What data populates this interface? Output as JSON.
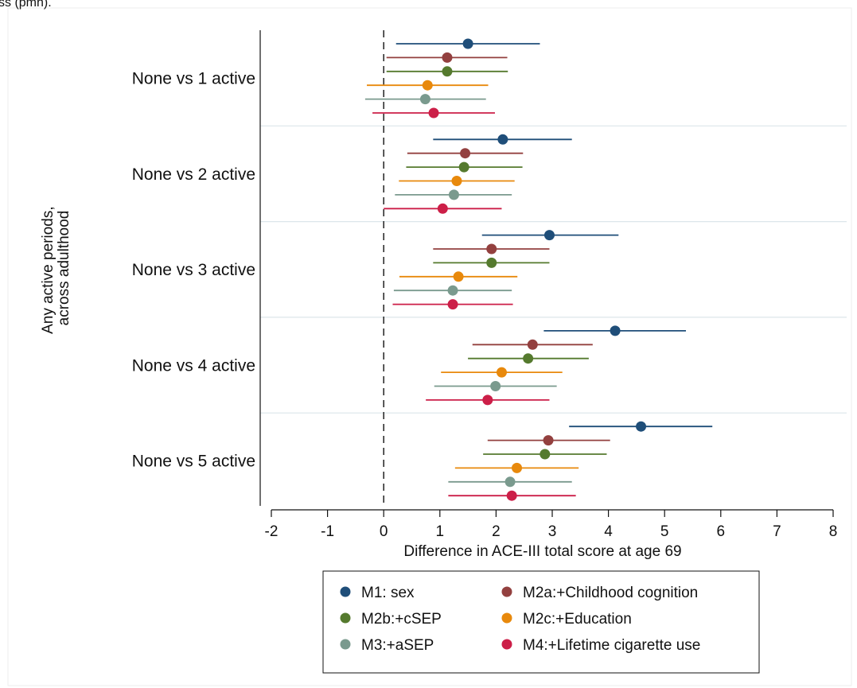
{
  "header": {
    "clipped_text": "ss (pmh)."
  },
  "chart_data": {
    "type": "forest",
    "title": "",
    "xlabel": "Difference in ACE-III total score at age 69",
    "ylabel_lines": [
      "Any active periods,",
      "across adulthood"
    ],
    "xlim": [
      -2,
      8
    ],
    "xticks": [
      -2,
      -1,
      0,
      1,
      2,
      3,
      4,
      5,
      6,
      7,
      8
    ],
    "reference_line": 0,
    "categories": [
      "None vs 1 active",
      "None vs 2 active",
      "None vs 3 active",
      "None vs 4 active",
      "None vs 5 active"
    ],
    "legend_position": "bottom",
    "series": [
      {
        "name": "M1: sex",
        "color": "#1f4e79",
        "estimate": [
          1.5,
          2.12,
          2.95,
          4.12,
          4.58
        ],
        "lower": [
          0.22,
          0.88,
          1.75,
          2.85,
          3.3
        ],
        "upper": [
          2.78,
          3.35,
          4.18,
          5.38,
          5.85
        ]
      },
      {
        "name": "M2a:+Childhood cognition",
        "color": "#93403f",
        "estimate": [
          1.13,
          1.45,
          1.92,
          2.65,
          2.93
        ],
        "lower": [
          0.05,
          0.42,
          0.88,
          1.58,
          1.85
        ],
        "upper": [
          2.2,
          2.48,
          2.95,
          3.72,
          4.03
        ]
      },
      {
        "name": "M2b:+cSEP",
        "color": "#557a2e",
        "estimate": [
          1.13,
          1.43,
          1.92,
          2.57,
          2.87
        ],
        "lower": [
          0.05,
          0.4,
          0.88,
          1.5,
          1.77
        ],
        "upper": [
          2.21,
          2.47,
          2.95,
          3.65,
          3.97
        ]
      },
      {
        "name": "M2c:+Education",
        "color": "#e8890c",
        "estimate": [
          0.78,
          1.3,
          1.33,
          2.1,
          2.37
        ],
        "lower": [
          -0.3,
          0.27,
          0.28,
          1.02,
          1.27
        ],
        "upper": [
          1.86,
          2.33,
          2.38,
          3.18,
          3.47
        ]
      },
      {
        "name": "M3:+aSEP",
        "color": "#7a9a8e",
        "estimate": [
          0.74,
          1.25,
          1.23,
          1.99,
          2.25
        ],
        "lower": [
          -0.33,
          0.2,
          0.18,
          0.9,
          1.15
        ],
        "upper": [
          1.82,
          2.28,
          2.28,
          3.08,
          3.35
        ]
      },
      {
        "name": "M4:+Lifetime cigarette use",
        "color": "#cc1f48",
        "estimate": [
          0.89,
          1.05,
          1.23,
          1.85,
          2.28
        ],
        "lower": [
          -0.2,
          0.0,
          0.16,
          0.75,
          1.15
        ],
        "upper": [
          1.98,
          2.1,
          2.3,
          2.95,
          3.42
        ]
      }
    ]
  }
}
